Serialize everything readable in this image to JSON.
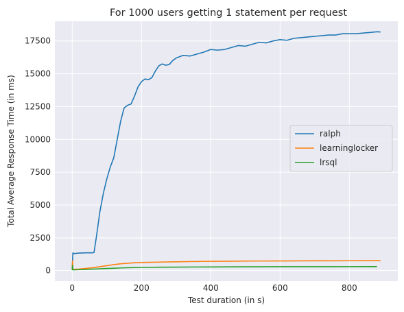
{
  "chart_data": {
    "type": "line",
    "title": "For 1000 users getting 1 statement per request",
    "xlabel": "Test duration (in s)",
    "ylabel": "Total Average Response Time (in ms)",
    "xlim": [
      -50,
      940
    ],
    "ylim": [
      -800,
      19000
    ],
    "xticks": [
      0,
      200,
      400,
      600,
      800
    ],
    "yticks": [
      0,
      2500,
      5000,
      7500,
      10000,
      12500,
      15000,
      17500
    ],
    "grid": true,
    "legend_position": "center-right",
    "background_color": "#eaeaf2",
    "series": [
      {
        "name": "ralph",
        "color": "#1f77b4",
        "points": [
          [
            0,
            100
          ],
          [
            2,
            1350
          ],
          [
            5,
            1300
          ],
          [
            20,
            1340
          ],
          [
            40,
            1360
          ],
          [
            60,
            1360
          ],
          [
            63,
            1380
          ],
          [
            70,
            2600
          ],
          [
            80,
            4500
          ],
          [
            90,
            5900
          ],
          [
            100,
            7000
          ],
          [
            110,
            7900
          ],
          [
            120,
            8600
          ],
          [
            130,
            10000
          ],
          [
            140,
            11400
          ],
          [
            150,
            12400
          ],
          [
            160,
            12600
          ],
          [
            170,
            12700
          ],
          [
            180,
            13300
          ],
          [
            190,
            14000
          ],
          [
            200,
            14400
          ],
          [
            210,
            14600
          ],
          [
            220,
            14550
          ],
          [
            230,
            14700
          ],
          [
            240,
            15200
          ],
          [
            250,
            15600
          ],
          [
            260,
            15750
          ],
          [
            270,
            15650
          ],
          [
            280,
            15700
          ],
          [
            290,
            16000
          ],
          [
            300,
            16200
          ],
          [
            320,
            16400
          ],
          [
            340,
            16350
          ],
          [
            360,
            16500
          ],
          [
            380,
            16650
          ],
          [
            400,
            16850
          ],
          [
            420,
            16800
          ],
          [
            440,
            16850
          ],
          [
            460,
            17000
          ],
          [
            480,
            17150
          ],
          [
            500,
            17100
          ],
          [
            520,
            17250
          ],
          [
            540,
            17400
          ],
          [
            560,
            17350
          ],
          [
            580,
            17500
          ],
          [
            600,
            17600
          ],
          [
            620,
            17550
          ],
          [
            640,
            17700
          ],
          [
            660,
            17750
          ],
          [
            680,
            17800
          ],
          [
            700,
            17850
          ],
          [
            720,
            17900
          ],
          [
            740,
            17950
          ],
          [
            760,
            17950
          ],
          [
            780,
            18050
          ],
          [
            800,
            18050
          ],
          [
            820,
            18050
          ],
          [
            840,
            18100
          ],
          [
            860,
            18150
          ],
          [
            880,
            18200
          ],
          [
            890,
            18180
          ]
        ]
      },
      {
        "name": "learninglocker",
        "color": "#ff7f0e",
        "points": [
          [
            0,
            50
          ],
          [
            1,
            750
          ],
          [
            2,
            100
          ],
          [
            20,
            120
          ],
          [
            40,
            170
          ],
          [
            60,
            230
          ],
          [
            80,
            300
          ],
          [
            100,
            380
          ],
          [
            120,
            460
          ],
          [
            140,
            520
          ],
          [
            160,
            560
          ],
          [
            180,
            600
          ],
          [
            200,
            620
          ],
          [
            250,
            650
          ],
          [
            300,
            675
          ],
          [
            350,
            695
          ],
          [
            400,
            710
          ],
          [
            450,
            720
          ],
          [
            500,
            730
          ],
          [
            550,
            735
          ],
          [
            600,
            740
          ],
          [
            650,
            745
          ],
          [
            700,
            750
          ],
          [
            750,
            752
          ],
          [
            800,
            755
          ],
          [
            850,
            758
          ],
          [
            890,
            760
          ]
        ]
      },
      {
        "name": "lrsql",
        "color": "#2ca02c",
        "points": [
          [
            0,
            40
          ],
          [
            1,
            400
          ],
          [
            2,
            60
          ],
          [
            20,
            80
          ],
          [
            40,
            100
          ],
          [
            60,
            120
          ],
          [
            80,
            140
          ],
          [
            100,
            165
          ],
          [
            120,
            185
          ],
          [
            140,
            205
          ],
          [
            160,
            220
          ],
          [
            180,
            235
          ],
          [
            200,
            245
          ],
          [
            250,
            260
          ],
          [
            300,
            270
          ],
          [
            350,
            278
          ],
          [
            400,
            283
          ],
          [
            450,
            288
          ],
          [
            500,
            292
          ],
          [
            550,
            295
          ],
          [
            600,
            298
          ],
          [
            650,
            300
          ],
          [
            700,
            302
          ],
          [
            750,
            303
          ],
          [
            800,
            304
          ],
          [
            850,
            305
          ],
          [
            880,
            305
          ]
        ]
      }
    ]
  }
}
